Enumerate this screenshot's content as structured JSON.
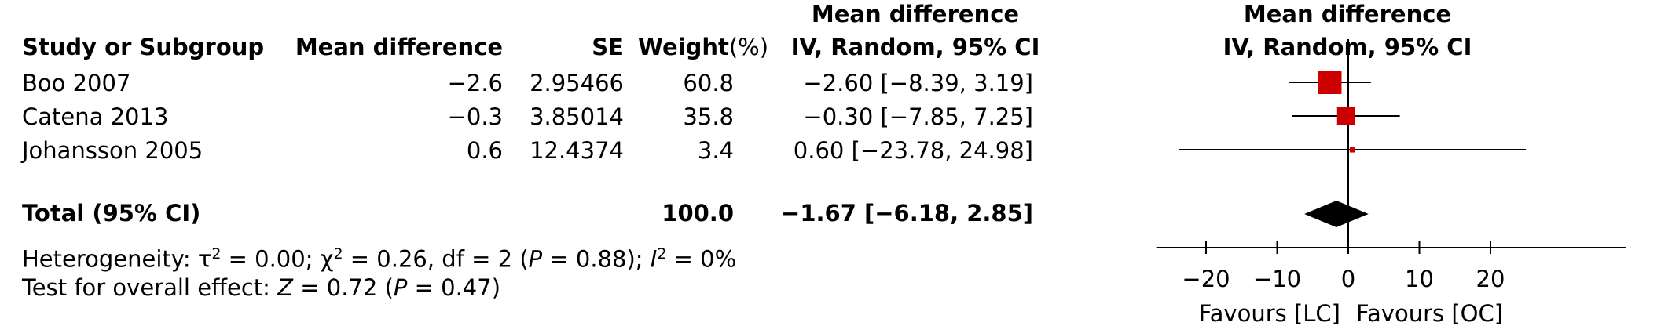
{
  "header": {
    "study_col": "Study or Subgroup",
    "md_col": "Mean difference",
    "se_col": "SE",
    "weight_col": "Weight",
    "weight_unit": "(%)",
    "ci_col_line1": "Mean difference",
    "ci_col_line2": "IV, Random, 95% CI",
    "plot_col_line1": "Mean difference",
    "plot_col_line2": "IV, Random, 95% CI"
  },
  "studies": [
    {
      "name": "Boo 2007",
      "md": "−2.6",
      "se": "2.95466",
      "weight": "60.8",
      "ci": "−2.60 [−8.39, 3.19]"
    },
    {
      "name": "Catena 2013",
      "md": "−0.3",
      "se": "3.85014",
      "weight": "35.8",
      "ci": "−0.30 [−7.85, 7.25]"
    },
    {
      "name": "Johansson 2005",
      "md": "0.6",
      "se": "12.4374",
      "weight": "3.4",
      "ci": "0.60 [−23.78, 24.98]"
    }
  ],
  "total": {
    "label": "Total (95% CI)",
    "weight": "100.0",
    "ci": "−1.67 [−6.18, 2.85]"
  },
  "heterogeneity": {
    "prefix": "Heterogeneity: ",
    "tau_sym": "τ",
    "tau_val": " = 0.00; ",
    "chi_sym": "χ",
    "chi_val": " = 0.26, df = 2 (",
    "p_sym": "P",
    "p_val": " = 0.88); ",
    "i_sym": "I",
    "i_val": " = 0%",
    "sup": "2"
  },
  "overall": {
    "prefix": "Test for overall effect: ",
    "z_sym": "Z",
    "z_val": " = 0.72 (",
    "p_sym": "P",
    "p_val": " = 0.47)"
  },
  "chart_data": {
    "type": "forest",
    "title": "Mean difference IV, Random, 95% CI",
    "xlim": [
      -27,
      39
    ],
    "ticks": [
      -20,
      -10,
      0,
      10,
      20
    ],
    "tick_labels": [
      "−20",
      "−10",
      "0",
      "10",
      "20"
    ],
    "favours_left": "Favours [LC]",
    "favours_right": "Favours [OC]",
    "marker_color": "#cc0000",
    "studies": [
      {
        "name": "Boo 2007",
        "estimate": -2.6,
        "lower": -8.39,
        "upper": 3.19,
        "weight": 60.8
      },
      {
        "name": "Catena 2013",
        "estimate": -0.3,
        "lower": -7.85,
        "upper": 7.25,
        "weight": 35.8
      },
      {
        "name": "Johansson 2005",
        "estimate": 0.6,
        "lower": -23.78,
        "upper": 24.98,
        "weight": 3.4
      }
    ],
    "total": {
      "estimate": -1.67,
      "lower": -6.18,
      "upper": 2.85
    }
  }
}
